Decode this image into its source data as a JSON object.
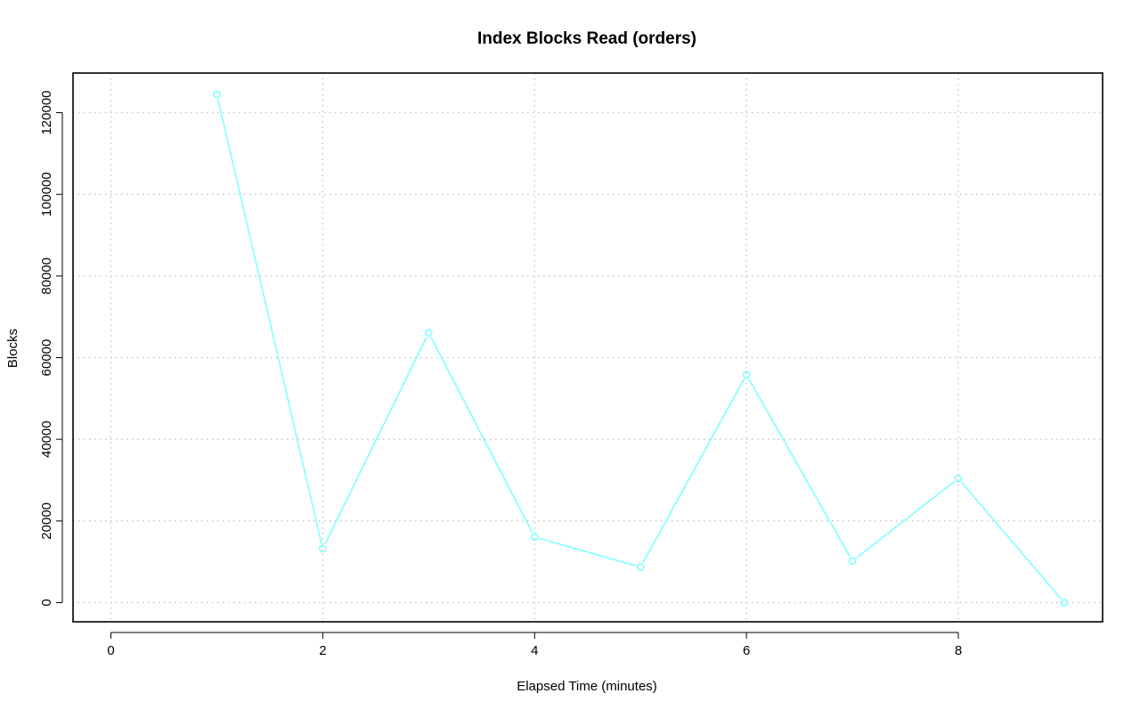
{
  "chart_data": {
    "type": "line",
    "title": "Index Blocks Read (orders)",
    "xlabel": "Elapsed Time (minutes)",
    "ylabel": "Blocks",
    "xlim": [
      0,
      9
    ],
    "ylim": [
      0,
      125000
    ],
    "x_ticks": [
      0,
      2,
      4,
      6,
      8
    ],
    "y_ticks": [
      0,
      20000,
      40000,
      60000,
      80000,
      100000,
      120000
    ],
    "grid": true,
    "legend": "none",
    "series": [
      {
        "color": "#7fffff",
        "marker": "open-circle",
        "x": [
          1,
          2,
          3,
          4,
          5,
          6,
          7,
          8,
          9
        ],
        "y": [
          124500,
          13200,
          66100,
          16100,
          8700,
          55800,
          10200,
          30400,
          0
        ]
      }
    ]
  }
}
